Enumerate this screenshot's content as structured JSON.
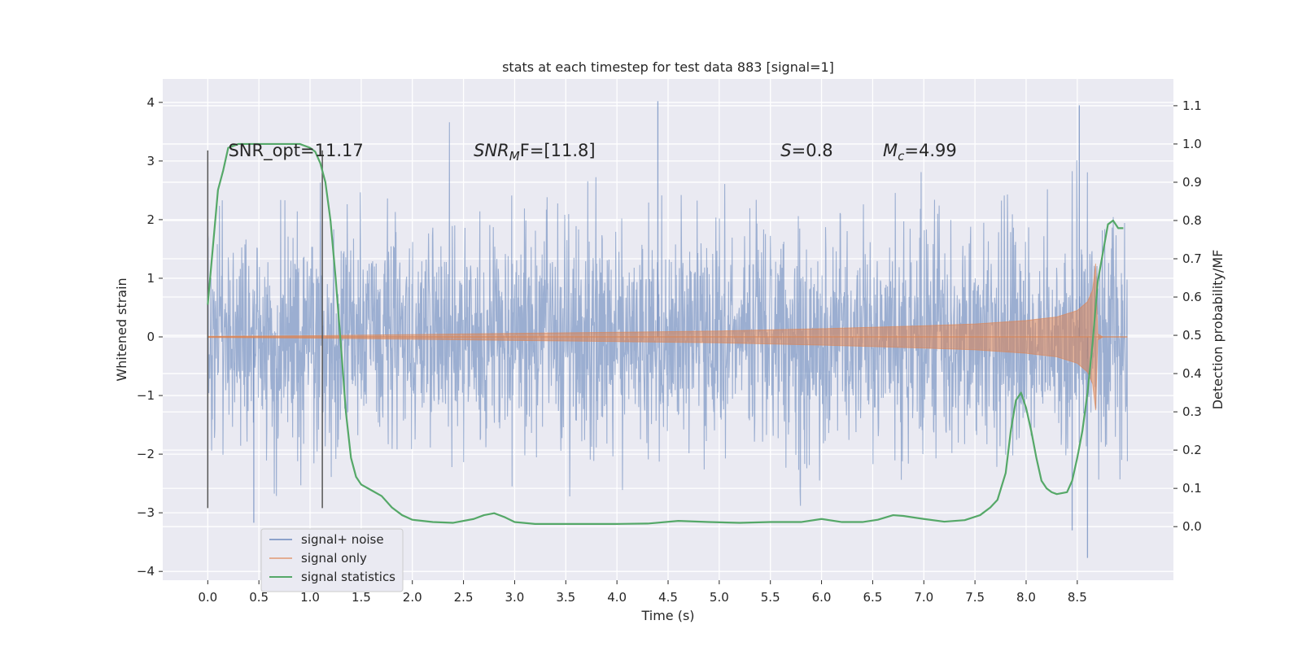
{
  "chart_data": {
    "type": "line",
    "title": "stats at each timestep for test data 883 [signal=1]",
    "xlabel": "Time (s)",
    "ylabel": "Whitened strain",
    "y2label": "Detection probability/MF",
    "xlim": [
      -0.44,
      9.44
    ],
    "ylim": [
      -4.15,
      4.4
    ],
    "y2lim": [
      -0.14,
      1.17
    ],
    "xticks": [
      "0.0",
      "0.5",
      "1.0",
      "1.5",
      "2.0",
      "2.5",
      "3.0",
      "3.5",
      "4.0",
      "4.5",
      "5.0",
      "5.5",
      "6.0",
      "6.5",
      "7.0",
      "7.5",
      "8.0",
      "8.5"
    ],
    "yticks": [
      "4",
      "3",
      "2",
      "1",
      "0",
      "−1",
      "−2",
      "−3",
      "−4"
    ],
    "y2ticks": [
      "1.1",
      "1.0",
      "0.9",
      "0.8",
      "0.7",
      "0.6",
      "0.5",
      "0.4",
      "0.3",
      "0.2",
      "0.1",
      "0.0"
    ],
    "grid": true,
    "legend_position": "lower-left",
    "background": "#eaeaf2",
    "series": [
      {
        "name": "signal+ noise",
        "axis": "left",
        "color": "#4c72b0",
        "style": "dense-noise",
        "x_range": [
          0.0,
          8.99
        ],
        "band": [
          -1.3,
          1.3
        ],
        "peaks": [
          [
            4.4,
            4.02
          ],
          [
            8.52,
            3.95
          ],
          [
            0.45,
            -3.17
          ],
          [
            8.6,
            -3.77
          ],
          [
            8.45,
            -3.3
          ]
        ]
      },
      {
        "name": "signal only",
        "axis": "left",
        "color": "#dd8452",
        "style": "chirp-envelope",
        "x": [
          0.0,
          1.0,
          2.0,
          3.0,
          4.0,
          5.0,
          6.0,
          7.0,
          7.5,
          8.0,
          8.3,
          8.5,
          8.6,
          8.65,
          8.68,
          8.7,
          8.75,
          8.99
        ],
        "amplitude": [
          0.01,
          0.02,
          0.04,
          0.06,
          0.08,
          0.1,
          0.14,
          0.19,
          0.22,
          0.28,
          0.34,
          0.45,
          0.6,
          0.8,
          1.25,
          0.05,
          0.0,
          0.0
        ]
      },
      {
        "name": "signal statistics",
        "axis": "right",
        "color": "#55a868",
        "x": [
          0.0,
          0.05,
          0.1,
          0.15,
          0.2,
          0.3,
          0.5,
          0.7,
          0.9,
          1.0,
          1.05,
          1.1,
          1.15,
          1.2,
          1.25,
          1.3,
          1.35,
          1.4,
          1.45,
          1.5,
          1.6,
          1.7,
          1.8,
          1.9,
          2.0,
          2.2,
          2.4,
          2.6,
          2.7,
          2.8,
          2.9,
          3.0,
          3.2,
          3.5,
          4.0,
          4.3,
          4.6,
          4.9,
          5.2,
          5.5,
          5.8,
          6.0,
          6.2,
          6.4,
          6.55,
          6.7,
          6.8,
          7.0,
          7.2,
          7.4,
          7.55,
          7.65,
          7.72,
          7.8,
          7.85,
          7.9,
          7.95,
          8.0,
          8.05,
          8.1,
          8.15,
          8.2,
          8.25,
          8.3,
          8.4,
          8.45,
          8.5,
          8.55,
          8.6,
          8.65,
          8.7,
          8.8,
          8.85,
          8.9,
          8.95
        ],
        "values": [
          0.58,
          0.73,
          0.88,
          0.93,
          0.99,
          1.0,
          1.0,
          1.0,
          1.0,
          0.99,
          0.98,
          0.95,
          0.9,
          0.8,
          0.65,
          0.48,
          0.3,
          0.18,
          0.13,
          0.11,
          0.095,
          0.08,
          0.05,
          0.03,
          0.018,
          0.012,
          0.01,
          0.02,
          0.03,
          0.035,
          0.025,
          0.012,
          0.007,
          0.007,
          0.007,
          0.008,
          0.015,
          0.012,
          0.01,
          0.012,
          0.012,
          0.02,
          0.012,
          0.012,
          0.018,
          0.03,
          0.028,
          0.02,
          0.013,
          0.017,
          0.03,
          0.05,
          0.07,
          0.14,
          0.25,
          0.33,
          0.35,
          0.31,
          0.25,
          0.18,
          0.12,
          0.1,
          0.09,
          0.085,
          0.09,
          0.12,
          0.18,
          0.25,
          0.35,
          0.48,
          0.64,
          0.79,
          0.8,
          0.78,
          0.78
        ]
      }
    ],
    "vlines": [
      {
        "x": 0.0,
        "ymin": -2.92,
        "ymax": 3.18,
        "color": "#555555"
      },
      {
        "x": 1.12,
        "ymin": -2.92,
        "ymax": 3.18,
        "color": "#555555"
      }
    ],
    "annotations": [
      {
        "id": "snr-opt",
        "text": "SNR_opt=11.17",
        "x": 0.2,
        "y": 3.18
      },
      {
        "id": "snr-mf",
        "prefix": "SNR",
        "sub": "M",
        "suffix": "F=[11.8]",
        "x": 2.6,
        "y": 3.18
      },
      {
        "id": "s-val",
        "prefix": "S",
        "suffix": "=0.8",
        "x": 5.6,
        "y": 3.18
      },
      {
        "id": "mc-val",
        "prefix": "M",
        "sub": "c",
        "suffix": "=4.99",
        "x": 6.6,
        "y": 3.18
      }
    ]
  }
}
